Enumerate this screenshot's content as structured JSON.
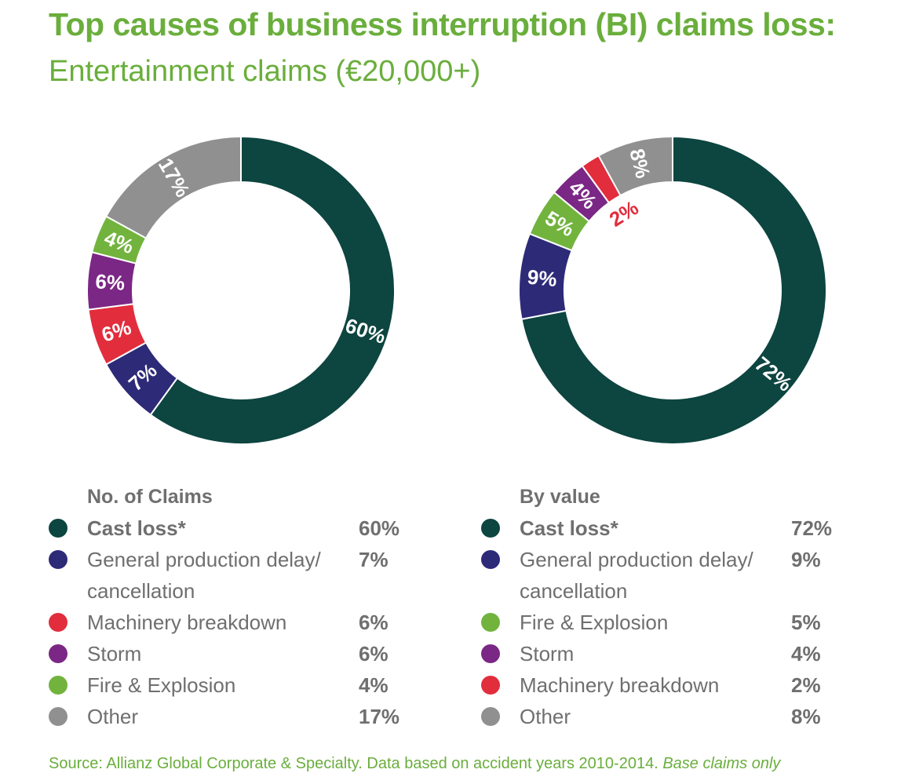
{
  "title": "Top causes of business interruption (BI) claims loss:",
  "subtitle": "Entertainment claims (€20,000+)",
  "colors": {
    "cast_loss": "#0d4540",
    "production_delay": "#2d2a78",
    "machinery": "#e22d3d",
    "storm": "#7b2785",
    "fire": "#72b33e",
    "other": "#909090",
    "accent": "#6aae3c"
  },
  "chart_data": [
    {
      "type": "pie",
      "title": "No. of Claims",
      "slices": [
        {
          "label": "Cast loss*",
          "value": 60,
          "display": "60%",
          "color": "#0d4540",
          "bold": true
        },
        {
          "label": "General production delay/ cancellation",
          "value": 7,
          "display": "7%",
          "color": "#2d2a78"
        },
        {
          "label": "Machinery breakdown",
          "value": 6,
          "display": "6%",
          "color": "#e22d3d"
        },
        {
          "label": "Storm",
          "value": 6,
          "display": "6%",
          "color": "#7b2785"
        },
        {
          "label": "Fire & Explosion",
          "value": 4,
          "display": "4%",
          "color": "#72b33e"
        },
        {
          "label": "Other",
          "value": 17,
          "display": "17%",
          "color": "#909090"
        }
      ]
    },
    {
      "type": "pie",
      "title": "By value",
      "slices": [
        {
          "label": "Cast loss*",
          "value": 72,
          "display": "72%",
          "color": "#0d4540",
          "bold": true
        },
        {
          "label": "General production delay/ cancellation",
          "value": 9,
          "display": "9%",
          "color": "#2d2a78"
        },
        {
          "label": "Fire & Explosion",
          "value": 5,
          "display": "5%",
          "color": "#72b33e"
        },
        {
          "label": "Storm",
          "value": 4,
          "display": "4%",
          "color": "#7b2785"
        },
        {
          "label": "Machinery breakdown",
          "value": 2,
          "display": "2%",
          "color": "#e22d3d",
          "label_outside": true
        },
        {
          "label": "Other",
          "value": 8,
          "display": "8%",
          "color": "#909090"
        }
      ]
    }
  ],
  "source": {
    "text": "Source: Allianz Global Corporate & Specialty. Data based on accident years 2010-2014. ",
    "note": "Base claims only"
  }
}
